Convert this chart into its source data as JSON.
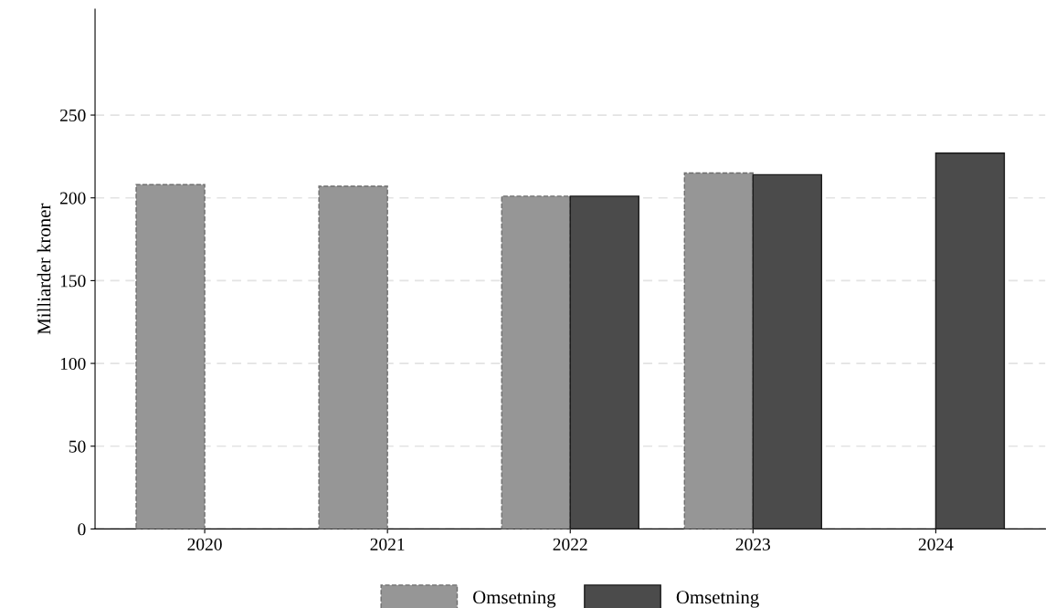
{
  "chart_data": {
    "type": "bar",
    "ylabel": "Milliarder kroner",
    "categories": [
      "2020",
      "2021",
      "2022",
      "2023",
      "2024"
    ],
    "series": [
      {
        "name": "Omsetning",
        "color": "#969696",
        "line_style": "dashed",
        "values": [
          208,
          207,
          201,
          215,
          null
        ]
      },
      {
        "name": "Omsetning",
        "color": "#4b4b4b",
        "line_style": "solid",
        "values": [
          null,
          null,
          201,
          214,
          227
        ]
      }
    ],
    "ylim": [
      0,
      314
    ],
    "yticks": [
      0,
      50,
      100,
      150,
      200,
      250
    ],
    "grid": "y",
    "legend": "bottom"
  }
}
